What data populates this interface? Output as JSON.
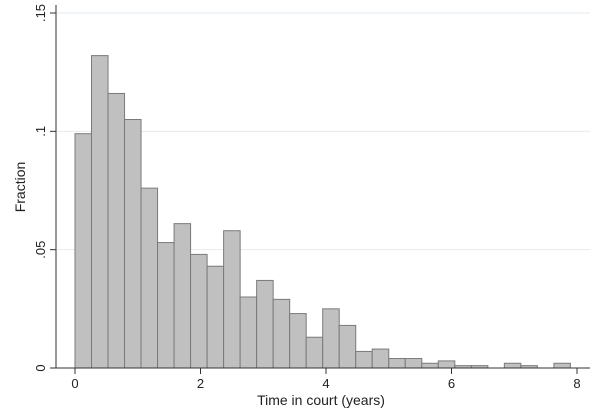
{
  "chart_data": {
    "type": "bar",
    "xlabel": "Time in court (years)",
    "ylabel": "Fraction",
    "xlim": [
      0,
      8
    ],
    "ylim": [
      0,
      0.15
    ],
    "x_ticks": [
      0,
      2,
      4,
      6,
      8
    ],
    "x_tick_labels": [
      "0",
      "2",
      "4",
      "6",
      "8"
    ],
    "y_ticks": [
      0,
      0.05,
      0.1,
      0.15
    ],
    "y_tick_labels": [
      "0",
      ".05",
      ".1",
      ".15"
    ],
    "grid": true,
    "bin_width": 0.2632,
    "bins_start": [
      0,
      0.2632,
      0.5263,
      0.7895,
      1.0526,
      1.3158,
      1.5789,
      1.8421,
      2.1053,
      2.3684,
      2.6316,
      2.8947,
      3.1579,
      3.4211,
      3.6842,
      3.9474,
      4.2105,
      4.4737,
      4.7368,
      5.0,
      5.2632,
      5.5263,
      5.7895,
      6.0526,
      6.3158,
      6.5789,
      6.8421,
      7.1053,
      7.3684,
      7.6316
    ],
    "values": [
      0.099,
      0.132,
      0.116,
      0.105,
      0.076,
      0.053,
      0.061,
      0.048,
      0.043,
      0.058,
      0.03,
      0.037,
      0.029,
      0.023,
      0.013,
      0.025,
      0.018,
      0.007,
      0.008,
      0.004,
      0.004,
      0.002,
      0.003,
      0.001,
      0.001,
      0.0,
      0.002,
      0.001,
      0.0,
      0.002
    ],
    "bar_color": "#c0c0c0",
    "bar_edge_color": "#7a7a7a"
  }
}
